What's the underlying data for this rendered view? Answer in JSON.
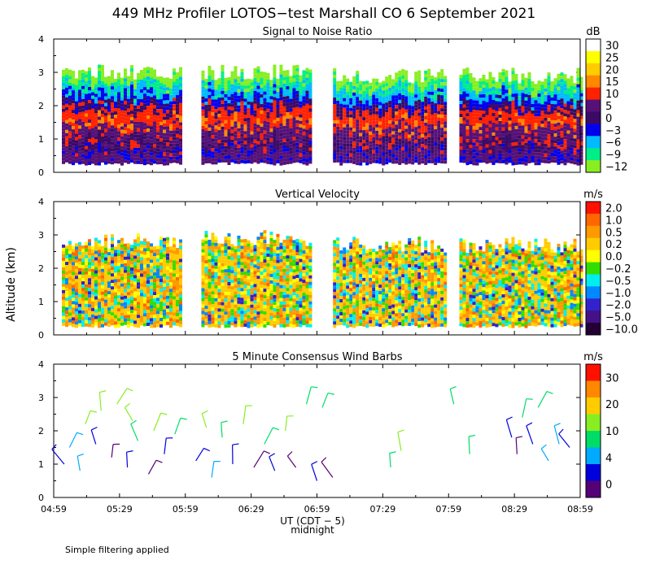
{
  "title": "449 MHz Profiler LOTOS−test Marshall CO  6 September 2021",
  "ylabel": "Altitude (km)",
  "xlabel": "UT (CDT − 5)",
  "midnight_label": "midnight",
  "footer": "Simple filtering applied",
  "time_ticks": [
    "04:59",
    "05:29",
    "05:59",
    "06:29",
    "06:59",
    "07:29",
    "07:59",
    "08:29",
    "08:59"
  ],
  "altitude_ticks": [
    "0",
    "1",
    "2",
    "3",
    "4"
  ],
  "chart_data": [
    {
      "type": "heatmap",
      "title": "Signal to Noise Ratio",
      "unit": "dB",
      "ylim": [
        0,
        4
      ],
      "colorbar_labels": [
        "30",
        "25",
        "20",
        "15",
        "10",
        "5",
        "0",
        "−3",
        "−6",
        "−9",
        "−12"
      ],
      "colors": [
        "#ffffff",
        "#ffff00",
        "#ffcc00",
        "#ff8800",
        "#ff2200",
        "#551177",
        "#3a0a66",
        "#0000ee",
        "#00bbff",
        "#00ee88",
        "#88ee22"
      ],
      "segments": [
        {
          "x0": 0.0,
          "x1": 0.24,
          "top": 3.0
        },
        {
          "x0": 0.265,
          "x1": 0.49,
          "top": 3.0
        },
        {
          "x0": 0.515,
          "x1": 0.745,
          "top": 2.9
        },
        {
          "x0": 0.755,
          "x1": 1.0,
          "top": 2.9
        }
      ]
    },
    {
      "type": "heatmap",
      "title": "Vertical Velocity",
      "unit": "m/s",
      "ylim": [
        0,
        4
      ],
      "colorbar_labels": [
        "2.0",
        "1.0",
        "0.5",
        "0.2",
        "0.0",
        "−0.2",
        "−0.5",
        "−1.0",
        "−2.0",
        "−5.0",
        "−10.0"
      ],
      "colors": [
        "#ff1100",
        "#ff6600",
        "#ff9900",
        "#ffcc00",
        "#ffff00",
        "#33dd00",
        "#00eeee",
        "#0088ff",
        "#3322cc",
        "#441188",
        "#220033"
      ],
      "segments": [
        {
          "x0": 0.0,
          "x1": 0.24,
          "top": 2.8
        },
        {
          "x0": 0.265,
          "x1": 0.49,
          "top": 2.9
        },
        {
          "x0": 0.515,
          "x1": 0.745,
          "top": 2.7
        },
        {
          "x0": 0.755,
          "x1": 1.0,
          "top": 2.7
        }
      ]
    },
    {
      "type": "scatter",
      "title": "5 Minute Consensus Wind Barbs",
      "unit": "m/s",
      "ylim": [
        0,
        4
      ],
      "colorbar_labels": [
        "30",
        "20",
        "10",
        "4",
        "0"
      ],
      "colors": [
        "#ff1100",
        "#ff8800",
        "#ffcc00",
        "#88ee22",
        "#00dd66",
        "#00aaff",
        "#0000dd",
        "#550077"
      ],
      "barbs": [
        {
          "t": 0.02,
          "alt": 1.0,
          "c": 6
        },
        {
          "t": 0.03,
          "alt": 1.5,
          "c": 5
        },
        {
          "t": 0.05,
          "alt": 0.8,
          "c": 5
        },
        {
          "t": 0.06,
          "alt": 2.2,
          "c": 3
        },
        {
          "t": 0.08,
          "alt": 1.6,
          "c": 6
        },
        {
          "t": 0.09,
          "alt": 2.6,
          "c": 3
        },
        {
          "t": 0.11,
          "alt": 1.2,
          "c": 7
        },
        {
          "t": 0.12,
          "alt": 2.8,
          "c": 3
        },
        {
          "t": 0.14,
          "alt": 0.9,
          "c": 6
        },
        {
          "t": 0.15,
          "alt": 2.3,
          "c": 3
        },
        {
          "t": 0.16,
          "alt": 1.7,
          "c": 4
        },
        {
          "t": 0.18,
          "alt": 0.7,
          "c": 7
        },
        {
          "t": 0.19,
          "alt": 2.0,
          "c": 3
        },
        {
          "t": 0.21,
          "alt": 1.3,
          "c": 6
        },
        {
          "t": 0.23,
          "alt": 1.9,
          "c": 4
        },
        {
          "t": 0.27,
          "alt": 1.1,
          "c": 6
        },
        {
          "t": 0.29,
          "alt": 2.1,
          "c": 3
        },
        {
          "t": 0.3,
          "alt": 0.6,
          "c": 5
        },
        {
          "t": 0.32,
          "alt": 1.8,
          "c": 4
        },
        {
          "t": 0.34,
          "alt": 1.0,
          "c": 6
        },
        {
          "t": 0.36,
          "alt": 2.2,
          "c": 3
        },
        {
          "t": 0.38,
          "alt": 0.9,
          "c": 7
        },
        {
          "t": 0.4,
          "alt": 1.6,
          "c": 4
        },
        {
          "t": 0.42,
          "alt": 0.8,
          "c": 6
        },
        {
          "t": 0.44,
          "alt": 2.0,
          "c": 3
        },
        {
          "t": 0.46,
          "alt": 0.9,
          "c": 7
        },
        {
          "t": 0.48,
          "alt": 2.8,
          "c": 4
        },
        {
          "t": 0.5,
          "alt": 0.5,
          "c": 6
        },
        {
          "t": 0.51,
          "alt": 2.7,
          "c": 4
        },
        {
          "t": 0.53,
          "alt": 0.6,
          "c": 7
        },
        {
          "t": 0.66,
          "alt": 1.4,
          "c": 3
        },
        {
          "t": 0.64,
          "alt": 0.9,
          "c": 4
        },
        {
          "t": 0.76,
          "alt": 2.8,
          "c": 4
        },
        {
          "t": 0.79,
          "alt": 1.3,
          "c": 4
        },
        {
          "t": 0.87,
          "alt": 1.8,
          "c": 6
        },
        {
          "t": 0.89,
          "alt": 2.4,
          "c": 4
        },
        {
          "t": 0.88,
          "alt": 1.3,
          "c": 7
        },
        {
          "t": 0.91,
          "alt": 1.6,
          "c": 6
        },
        {
          "t": 0.92,
          "alt": 2.7,
          "c": 4
        },
        {
          "t": 0.94,
          "alt": 1.1,
          "c": 5
        },
        {
          "t": 0.96,
          "alt": 1.6,
          "c": 5
        },
        {
          "t": 0.98,
          "alt": 1.5,
          "c": 6
        }
      ]
    }
  ]
}
